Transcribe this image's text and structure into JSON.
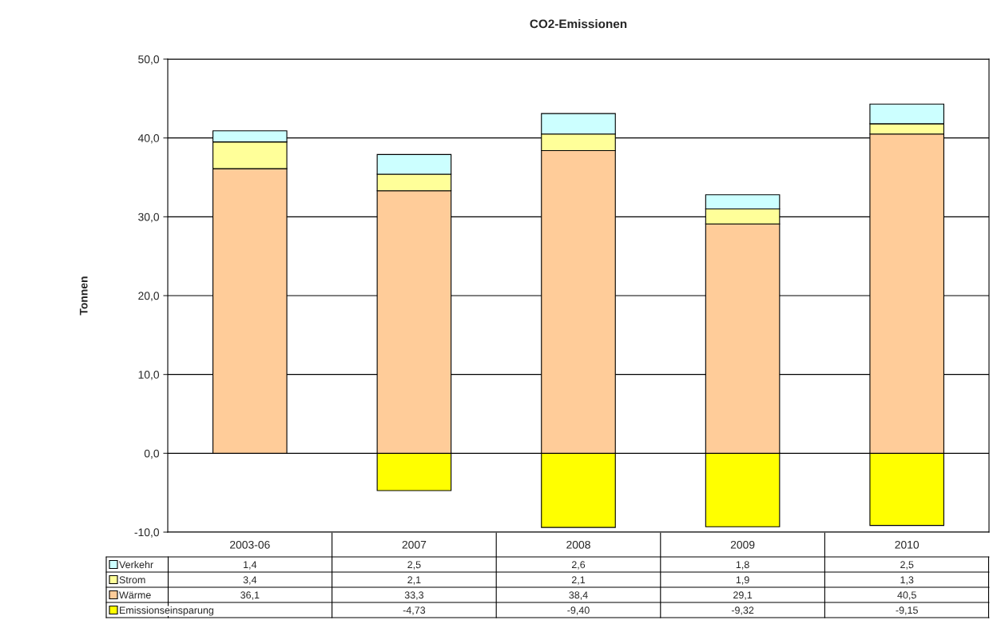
{
  "chart_data": {
    "type": "bar",
    "title": "CO2-Emissionen",
    "ylabel": "Tonnen",
    "stacked": true,
    "categories": [
      "2003-06",
      "2007",
      "2008",
      "2009",
      "2010"
    ],
    "series": [
      {
        "name": "Emissionseinsparung",
        "color": "#ffff00",
        "values": [
          null,
          -4.73,
          -9.4,
          -9.32,
          -9.15
        ],
        "value_labels": [
          null,
          "-4,73",
          "-9,40",
          "-9,32",
          "-9,15"
        ]
      },
      {
        "name": "Wärme",
        "color": "#ffcc99",
        "values": [
          36.1,
          33.3,
          38.4,
          29.1,
          40.5
        ],
        "value_labels": [
          "36,1",
          "33,3",
          "38,4",
          "29,1",
          "40,5"
        ]
      },
      {
        "name": "Strom",
        "color": "#ffff99",
        "values": [
          3.4,
          2.1,
          2.1,
          1.9,
          1.3
        ],
        "value_labels": [
          "3,4",
          "2,1",
          "2,1",
          "1,9",
          "1,3"
        ]
      },
      {
        "name": "Verkehr",
        "color": "#ccffff",
        "values": [
          1.4,
          2.5,
          2.6,
          1.8,
          2.5
        ],
        "value_labels": [
          "1,4",
          "2,5",
          "2,6",
          "1,8",
          "2,5"
        ]
      }
    ],
    "ylim": [
      -10,
      50
    ],
    "yticks": [
      {
        "value": -10,
        "label": "-10,0"
      },
      {
        "value": 0,
        "label": "0,0"
      },
      {
        "value": 10,
        "label": "10,0"
      },
      {
        "value": 20,
        "label": "20,0"
      },
      {
        "value": 30,
        "label": "30,0"
      },
      {
        "value": 40,
        "label": "40,0"
      },
      {
        "value": 50,
        "label": "50,0"
      }
    ],
    "grid": "y",
    "legend": "bottom left"
  }
}
